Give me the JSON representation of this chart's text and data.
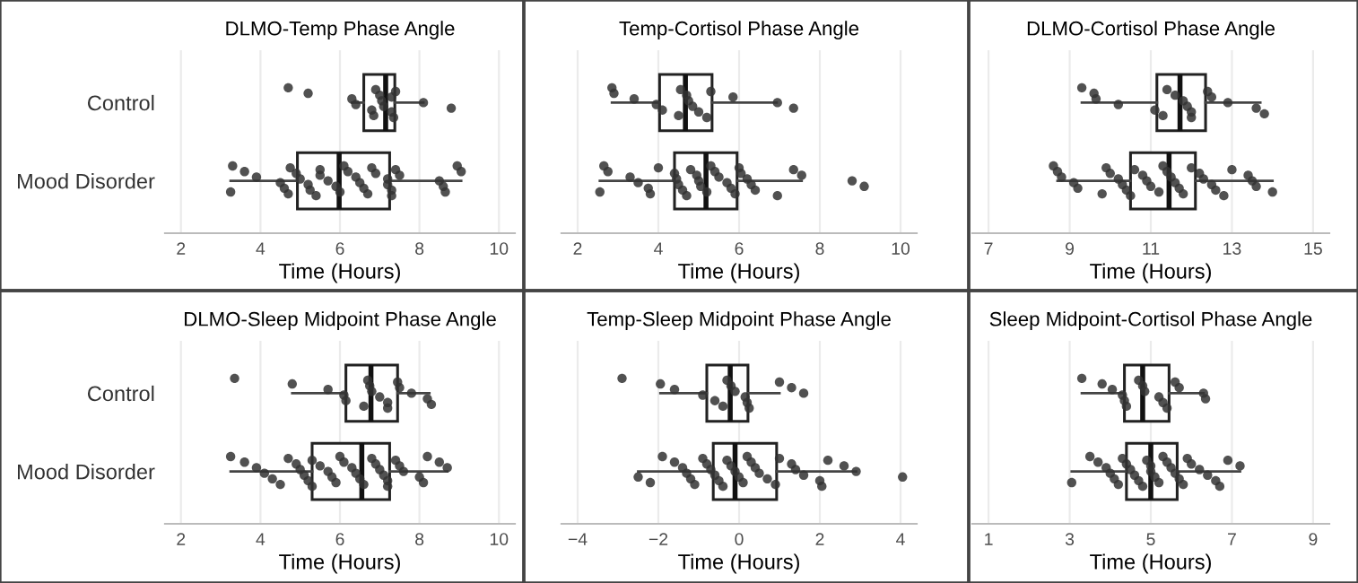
{
  "chart_data": [
    {
      "type": "box",
      "orientation": "horizontal",
      "title": "DLMO-Temp Phase Angle",
      "xlabel": "Time (Hours)",
      "categories": [
        "Control",
        "Mood Disorder"
      ],
      "xlim": [
        1.6,
        10.4
      ],
      "xticks": [
        2,
        4,
        6,
        8,
        10
      ],
      "grid": "x",
      "boxes": [
        {
          "low": 6.3,
          "q1": 6.6,
          "median": 7.15,
          "q3": 7.38,
          "high": 8.1
        },
        {
          "low": 3.25,
          "q1": 4.93,
          "median": 5.98,
          "q3": 7.25,
          "high": 9.05
        }
      ],
      "series": [
        {
          "type": "scatter",
          "color": "#333333",
          "x": [
            "Control",
            "Control",
            "Control",
            "Control",
            "Control",
            "Control",
            "Control",
            "Control",
            "Control",
            "Control",
            "Control",
            "Control",
            "Control",
            "Control",
            "Control",
            "Control",
            "Mood Disorder",
            "Mood Disorder",
            "Mood Disorder",
            "Mood Disorder",
            "Mood Disorder",
            "Mood Disorder",
            "Mood Disorder",
            "Mood Disorder",
            "Mood Disorder",
            "Mood Disorder",
            "Mood Disorder",
            "Mood Disorder",
            "Mood Disorder",
            "Mood Disorder",
            "Mood Disorder",
            "Mood Disorder",
            "Mood Disorder",
            "Mood Disorder",
            "Mood Disorder",
            "Mood Disorder",
            "Mood Disorder",
            "Mood Disorder",
            "Mood Disorder",
            "Mood Disorder",
            "Mood Disorder",
            "Mood Disorder",
            "Mood Disorder",
            "Mood Disorder",
            "Mood Disorder",
            "Mood Disorder",
            "Mood Disorder",
            "Mood Disorder",
            "Mood Disorder",
            "Mood Disorder",
            "Mood Disorder",
            "Mood Disorder",
            "Mood Disorder"
          ],
          "values": [
            4.7,
            5.2,
            6.3,
            6.4,
            6.8,
            6.85,
            6.9,
            7.0,
            7.05,
            7.1,
            7.3,
            7.35,
            7.4,
            7.3,
            8.1,
            8.8,
            3.25,
            3.3,
            3.6,
            3.9,
            4.5,
            4.6,
            4.7,
            4.75,
            4.9,
            5.0,
            5.2,
            5.25,
            5.4,
            5.5,
            5.5,
            5.7,
            5.9,
            6.0,
            6.1,
            6.2,
            6.4,
            6.5,
            6.6,
            6.7,
            6.8,
            6.9,
            7.2,
            7.2,
            7.3,
            7.3,
            7.4,
            7.5,
            8.5,
            8.6,
            8.65,
            8.95,
            9.05
          ]
        }
      ]
    },
    {
      "type": "box",
      "orientation": "horizontal",
      "title": "Temp-Cortisol Phase Angle",
      "xlabel": "Time (Hours)",
      "categories": [
        "Control",
        "Mood Disorder"
      ],
      "xlim": [
        1.6,
        10.4
      ],
      "xticks": [
        2,
        4,
        6,
        8,
        10
      ],
      "grid": "x",
      "tick_labels": "x",
      "boxes": [
        {
          "low": 2.85,
          "q1": 4.03,
          "median": 4.67,
          "q3": 5.33,
          "high": 6.93
        },
        {
          "low": 2.55,
          "q1": 4.4,
          "median": 5.18,
          "q3": 5.95,
          "high": 7.55
        }
      ],
      "series": [
        {
          "type": "scatter",
          "color": "#333333",
          "x": [
            "Control",
            "Control",
            "Control",
            "Control",
            "Control",
            "Control",
            "Control",
            "Control",
            "Control",
            "Control",
            "Control",
            "Control",
            "Control",
            "Control",
            "Control",
            "Control",
            "Mood Disorder",
            "Mood Disorder",
            "Mood Disorder",
            "Mood Disorder",
            "Mood Disorder",
            "Mood Disorder",
            "Mood Disorder",
            "Mood Disorder",
            "Mood Disorder",
            "Mood Disorder",
            "Mood Disorder",
            "Mood Disorder",
            "Mood Disorder",
            "Mood Disorder",
            "Mood Disorder",
            "Mood Disorder",
            "Mood Disorder",
            "Mood Disorder",
            "Mood Disorder",
            "Mood Disorder",
            "Mood Disorder",
            "Mood Disorder",
            "Mood Disorder",
            "Mood Disorder",
            "Mood Disorder",
            "Mood Disorder",
            "Mood Disorder",
            "Mood Disorder",
            "Mood Disorder",
            "Mood Disorder",
            "Mood Disorder",
            "Mood Disorder",
            "Mood Disorder",
            "Mood Disorder"
          ],
          "values": [
            2.85,
            2.9,
            3.4,
            3.95,
            4.1,
            4.5,
            4.55,
            4.7,
            4.75,
            4.85,
            5.0,
            5.2,
            5.3,
            5.85,
            6.95,
            7.35,
            2.55,
            2.65,
            2.75,
            3.3,
            3.5,
            3.75,
            3.8,
            4.0,
            4.4,
            4.45,
            4.5,
            4.6,
            4.7,
            4.8,
            4.95,
            5.0,
            5.05,
            5.2,
            5.3,
            5.4,
            5.5,
            5.7,
            5.8,
            5.9,
            6.0,
            6.05,
            6.2,
            6.3,
            6.4,
            6.95,
            7.35,
            7.55,
            8.8,
            9.1
          ]
        }
      ]
    },
    {
      "type": "box",
      "orientation": "horizontal",
      "title": "DLMO-Cortisol Phase Angle",
      "xlabel": "Time (Hours)",
      "categories": [
        "Control",
        "Mood Disorder"
      ],
      "xlim": [
        6.6,
        15.4
      ],
      "xticks": [
        7,
        9,
        11,
        13,
        15
      ],
      "grid": "x",
      "tick_labels": "x",
      "boxes": [
        {
          "low": 9.3,
          "q1": 11.15,
          "median": 11.72,
          "q3": 12.35,
          "high": 13.7
        },
        {
          "low": 8.7,
          "q1": 10.5,
          "median": 11.45,
          "q3": 12.1,
          "high": 14.0
        }
      ],
      "series": [
        {
          "type": "scatter",
          "color": "#333333",
          "x": [
            "Control",
            "Control",
            "Control",
            "Control",
            "Control",
            "Control",
            "Control",
            "Control",
            "Control",
            "Control",
            "Control",
            "Control",
            "Control",
            "Control",
            "Control",
            "Control",
            "Control",
            "Mood Disorder",
            "Mood Disorder",
            "Mood Disorder",
            "Mood Disorder",
            "Mood Disorder",
            "Mood Disorder",
            "Mood Disorder",
            "Mood Disorder",
            "Mood Disorder",
            "Mood Disorder",
            "Mood Disorder",
            "Mood Disorder",
            "Mood Disorder",
            "Mood Disorder",
            "Mood Disorder",
            "Mood Disorder",
            "Mood Disorder",
            "Mood Disorder",
            "Mood Disorder",
            "Mood Disorder",
            "Mood Disorder",
            "Mood Disorder",
            "Mood Disorder",
            "Mood Disorder",
            "Mood Disorder",
            "Mood Disorder",
            "Mood Disorder",
            "Mood Disorder",
            "Mood Disorder",
            "Mood Disorder",
            "Mood Disorder",
            "Mood Disorder",
            "Mood Disorder",
            "Mood Disorder"
          ],
          "values": [
            9.3,
            9.6,
            9.65,
            10.2,
            11.1,
            11.3,
            11.4,
            11.6,
            11.8,
            11.9,
            12.0,
            12.0,
            12.4,
            12.5,
            12.9,
            13.6,
            13.8,
            8.6,
            8.7,
            8.8,
            9.1,
            9.2,
            9.8,
            9.9,
            10.0,
            10.2,
            10.3,
            10.4,
            10.5,
            10.6,
            10.8,
            10.9,
            11.0,
            11.2,
            11.3,
            11.4,
            11.5,
            11.6,
            11.7,
            11.8,
            12.0,
            12.2,
            12.3,
            12.5,
            12.6,
            12.8,
            13.0,
            13.4,
            13.5,
            13.6,
            14.0
          ]
        }
      ]
    },
    {
      "type": "box",
      "orientation": "horizontal",
      "title": "DLMO-Sleep Midpoint Phase Angle",
      "xlabel": "Time (Hours)",
      "categories": [
        "Control",
        "Mood Disorder"
      ],
      "xlim": [
        1.6,
        10.4
      ],
      "xticks": [
        2,
        4,
        6,
        8,
        10
      ],
      "grid": "x",
      "boxes": [
        {
          "low": 4.8,
          "q1": 6.15,
          "median": 6.78,
          "q3": 7.45,
          "high": 8.25
        },
        {
          "low": 3.25,
          "q1": 5.3,
          "median": 6.55,
          "q3": 7.25,
          "high": 8.7
        }
      ],
      "series": [
        {
          "type": "scatter",
          "color": "#333333",
          "x": [
            "Control",
            "Control",
            "Control",
            "Control",
            "Control",
            "Control",
            "Control",
            "Control",
            "Control",
            "Control",
            "Control",
            "Control",
            "Control",
            "Control",
            "Control",
            "Control",
            "Control",
            "Mood Disorder",
            "Mood Disorder",
            "Mood Disorder",
            "Mood Disorder",
            "Mood Disorder",
            "Mood Disorder",
            "Mood Disorder",
            "Mood Disorder",
            "Mood Disorder",
            "Mood Disorder",
            "Mood Disorder",
            "Mood Disorder",
            "Mood Disorder",
            "Mood Disorder",
            "Mood Disorder",
            "Mood Disorder",
            "Mood Disorder",
            "Mood Disorder",
            "Mood Disorder",
            "Mood Disorder",
            "Mood Disorder",
            "Mood Disorder",
            "Mood Disorder",
            "Mood Disorder",
            "Mood Disorder",
            "Mood Disorder",
            "Mood Disorder",
            "Mood Disorder",
            "Mood Disorder",
            "Mood Disorder",
            "Mood Disorder",
            "Mood Disorder",
            "Mood Disorder",
            "Mood Disorder",
            "Mood Disorder",
            "Mood Disorder",
            "Mood Disorder"
          ],
          "values": [
            3.35,
            4.8,
            5.7,
            6.1,
            6.15,
            6.6,
            6.7,
            6.75,
            6.8,
            7.0,
            7.2,
            7.2,
            7.45,
            7.5,
            7.8,
            8.2,
            8.3,
            3.25,
            3.6,
            3.9,
            4.1,
            4.3,
            4.5,
            4.7,
            4.9,
            5.0,
            5.1,
            5.2,
            5.3,
            5.3,
            5.5,
            5.7,
            5.8,
            5.9,
            6.0,
            6.1,
            6.3,
            6.4,
            6.5,
            6.6,
            6.8,
            6.9,
            7.0,
            7.1,
            7.2,
            7.2,
            7.4,
            7.5,
            7.6,
            8.0,
            8.1,
            8.2,
            8.5,
            8.7
          ]
        }
      ]
    },
    {
      "type": "box",
      "orientation": "horizontal",
      "title": "Temp-Sleep Midpoint Phase Angle",
      "xlabel": "Time (Hours)",
      "categories": [
        "Control",
        "Mood Disorder"
      ],
      "xlim": [
        -4.4,
        4.4
      ],
      "xticks": [
        {
          "value": -4,
          "label": "−4"
        },
        {
          "value": -2,
          "label": "−2"
        },
        0,
        2,
        4
      ],
      "grid": "x",
      "tick_labels": "x",
      "boxes": [
        {
          "low": -1.95,
          "q1": -0.8,
          "median": -0.22,
          "q3": 0.22,
          "high": 1.0
        },
        {
          "low": -2.5,
          "q1": -0.64,
          "median": -0.1,
          "q3": 0.93,
          "high": 2.9
        }
      ],
      "series": [
        {
          "type": "scatter",
          "color": "#333333",
          "x": [
            "Control",
            "Control",
            "Control",
            "Control",
            "Control",
            "Control",
            "Control",
            "Control",
            "Control",
            "Control",
            "Control",
            "Control",
            "Control",
            "Control",
            "Control",
            "Mood Disorder",
            "Mood Disorder",
            "Mood Disorder",
            "Mood Disorder",
            "Mood Disorder",
            "Mood Disorder",
            "Mood Disorder",
            "Mood Disorder",
            "Mood Disorder",
            "Mood Disorder",
            "Mood Disorder",
            "Mood Disorder",
            "Mood Disorder",
            "Mood Disorder",
            "Mood Disorder",
            "Mood Disorder",
            "Mood Disorder",
            "Mood Disorder",
            "Mood Disorder",
            "Mood Disorder",
            "Mood Disorder",
            "Mood Disorder",
            "Mood Disorder",
            "Mood Disorder",
            "Mood Disorder",
            "Mood Disorder",
            "Mood Disorder",
            "Mood Disorder",
            "Mood Disorder",
            "Mood Disorder",
            "Mood Disorder",
            "Mood Disorder",
            "Mood Disorder",
            "Mood Disorder",
            "Mood Disorder"
          ],
          "values": [
            -2.9,
            -1.95,
            -1.6,
            -0.9,
            -0.6,
            -0.4,
            -0.3,
            -0.2,
            -0.1,
            0.15,
            0.2,
            0.25,
            1.0,
            1.3,
            1.6,
            -2.5,
            -2.2,
            -1.9,
            -1.6,
            -1.4,
            -1.3,
            -1.2,
            -1.1,
            -0.9,
            -0.8,
            -0.7,
            -0.6,
            -0.5,
            -0.4,
            -0.3,
            -0.2,
            -0.1,
            0.0,
            0.1,
            0.2,
            0.3,
            0.4,
            0.5,
            0.7,
            0.9,
            1.0,
            1.3,
            1.4,
            1.6,
            2.0,
            2.05,
            2.2,
            2.6,
            2.9,
            4.05
          ]
        }
      ]
    },
    {
      "type": "box",
      "orientation": "horizontal",
      "title": "Sleep Midpoint-Cortisol Phase Angle",
      "xlabel": "Time (Hours)",
      "categories": [
        "Control",
        "Mood Disorder"
      ],
      "xlim": [
        0.6,
        9.4
      ],
      "xticks": [
        1,
        3,
        5,
        7,
        9
      ],
      "grid": "x",
      "tick_labels": "x",
      "boxes": [
        {
          "low": 3.3,
          "q1": 4.35,
          "median": 4.8,
          "q3": 5.45,
          "high": 6.3
        },
        {
          "low": 3.05,
          "q1": 4.4,
          "median": 5.0,
          "q3": 5.65,
          "high": 7.2
        }
      ],
      "series": [
        {
          "type": "scatter",
          "color": "#333333",
          "x": [
            "Control",
            "Control",
            "Control",
            "Control",
            "Control",
            "Control",
            "Control",
            "Control",
            "Control",
            "Control",
            "Control",
            "Control",
            "Control",
            "Control",
            "Control",
            "Control",
            "Mood Disorder",
            "Mood Disorder",
            "Mood Disorder",
            "Mood Disorder",
            "Mood Disorder",
            "Mood Disorder",
            "Mood Disorder",
            "Mood Disorder",
            "Mood Disorder",
            "Mood Disorder",
            "Mood Disorder",
            "Mood Disorder",
            "Mood Disorder",
            "Mood Disorder",
            "Mood Disorder",
            "Mood Disorder",
            "Mood Disorder",
            "Mood Disorder",
            "Mood Disorder",
            "Mood Disorder",
            "Mood Disorder",
            "Mood Disorder",
            "Mood Disorder",
            "Mood Disorder",
            "Mood Disorder",
            "Mood Disorder",
            "Mood Disorder",
            "Mood Disorder",
            "Mood Disorder",
            "Mood Disorder",
            "Mood Disorder",
            "Mood Disorder"
          ],
          "values": [
            3.3,
            3.8,
            4.05,
            4.3,
            4.35,
            4.4,
            4.7,
            4.8,
            4.85,
            5.2,
            5.3,
            5.4,
            5.6,
            5.7,
            6.3,
            6.35,
            3.05,
            3.5,
            3.7,
            3.9,
            4.0,
            4.1,
            4.2,
            4.3,
            4.4,
            4.5,
            4.6,
            4.7,
            4.8,
            4.9,
            5.0,
            5.0,
            5.1,
            5.2,
            5.3,
            5.4,
            5.5,
            5.6,
            5.7,
            5.8,
            5.9,
            6.0,
            6.2,
            6.4,
            6.6,
            6.7,
            6.9,
            7.2
          ]
        }
      ]
    }
  ]
}
